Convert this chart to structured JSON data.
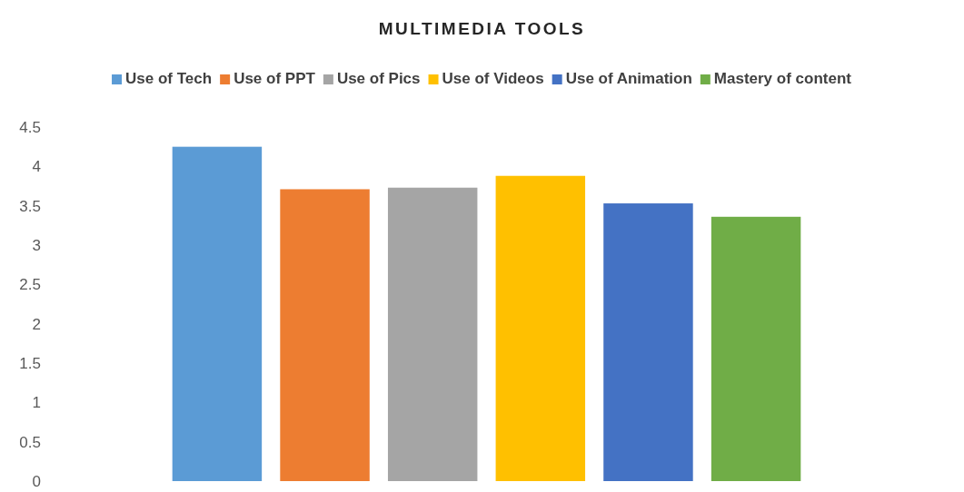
{
  "chart_data": {
    "type": "bar",
    "title": "MULTIMEDIA TOOLS",
    "categories": [
      null
    ],
    "series": [
      {
        "name": "Use of Tech",
        "color": "#5b9bd5",
        "values": [
          4.25
        ]
      },
      {
        "name": "Use of PPT",
        "color": "#ed7d31",
        "values": [
          3.71
        ]
      },
      {
        "name": "Use of Pics",
        "color": "#a5a5a5",
        "values": [
          3.73
        ]
      },
      {
        "name": "Use of Videos",
        "color": "#ffc000",
        "values": [
          3.88
        ]
      },
      {
        "name": "Use of Animation",
        "color": "#4472c4",
        "values": [
          3.53
        ]
      },
      {
        "name": "Mastery of content",
        "color": "#70ad47",
        "values": [
          3.36
        ]
      }
    ],
    "ylim": [
      0,
      4.5
    ],
    "yticks": [
      0,
      0.5,
      1,
      1.5,
      2,
      2.5,
      3,
      3.5,
      4,
      4.5
    ],
    "grid": false,
    "legend": "top"
  }
}
